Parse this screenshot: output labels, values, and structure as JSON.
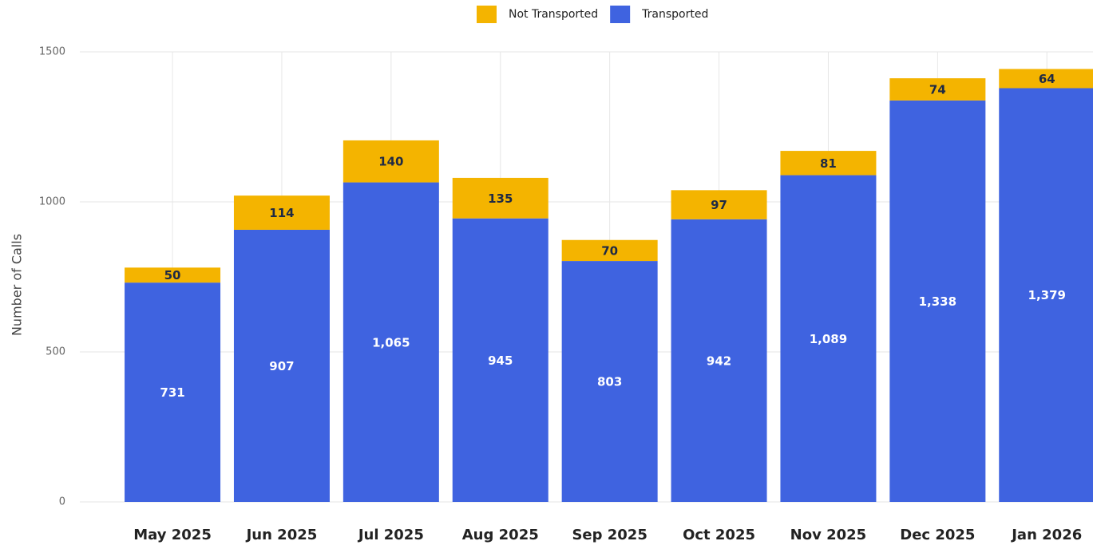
{
  "chart_data": {
    "type": "stacked_bar",
    "y_label": "Number of Calls",
    "categories": [
      "May 2025",
      "Jun 2025",
      "Jul 2025",
      "Aug 2025",
      "Sep 2025",
      "Oct 2025",
      "Nov 2025",
      "Dec 2025",
      "Jan 2026"
    ],
    "series": [
      {
        "name": "Transported",
        "color": "#3f63e0",
        "label_color": "#ffffff",
        "values": [
          731,
          907,
          1065,
          945,
          803,
          942,
          1089,
          1338,
          1379
        ],
        "value_labels": [
          "731",
          "907",
          "1,065",
          "945",
          "803",
          "942",
          "1,089",
          "1,338",
          "1,379"
        ]
      },
      {
        "name": "Not Transported",
        "color": "#f4b400",
        "label_color": "#1f2a44",
        "values": [
          50,
          114,
          140,
          135,
          70,
          97,
          81,
          74,
          64
        ]
      }
    ],
    "ylim": [
      0,
      1500
    ],
    "yticks": [
      0,
      500,
      1000,
      1500
    ],
    "grid": true,
    "legend": "top"
  }
}
